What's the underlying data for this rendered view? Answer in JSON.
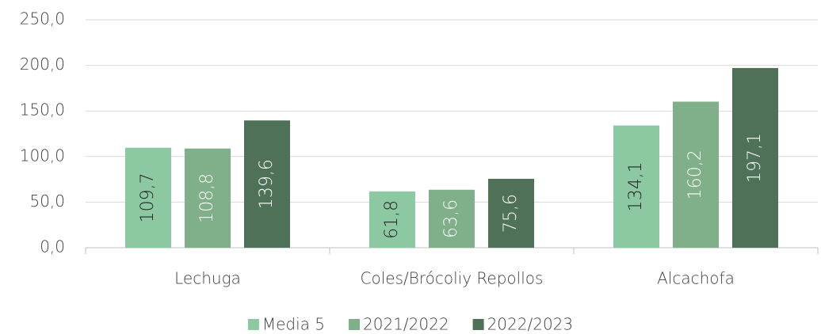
{
  "chart_data": {
    "type": "bar",
    "categories": [
      "Lechuga",
      "Coles/Brócoliy Repollos",
      "Alcachofa"
    ],
    "series": [
      {
        "name": "Media 5",
        "color": "#8cc9a3",
        "label_color": "#222222",
        "values": [
          109.7,
          61.8,
          134.1
        ],
        "value_labels": [
          "109,7",
          "61,8",
          "134,1"
        ]
      },
      {
        "name": "2021/2022",
        "color": "#7fb08a",
        "label_color": "#ffffff",
        "values": [
          108.8,
          63.6,
          160.2
        ],
        "value_labels": [
          "108,8",
          "63,6",
          "160,2"
        ]
      },
      {
        "name": "2022/2023",
        "color": "#4f7157",
        "label_color": "#ffffff",
        "values": [
          139.6,
          75.6,
          197.1
        ],
        "value_labels": [
          "139,6",
          "75,6",
          "197,1"
        ]
      }
    ],
    "ylim": [
      0,
      250
    ],
    "yticks": [
      {
        "value": 0,
        "label": "0,0"
      },
      {
        "value": 50,
        "label": "50,0"
      },
      {
        "value": 100,
        "label": "100,0"
      },
      {
        "value": 150,
        "label": "150,0"
      },
      {
        "value": 200,
        "label": "200,0"
      },
      {
        "value": 250,
        "label": "250,0"
      }
    ],
    "grid": true,
    "legend": "bottom"
  }
}
